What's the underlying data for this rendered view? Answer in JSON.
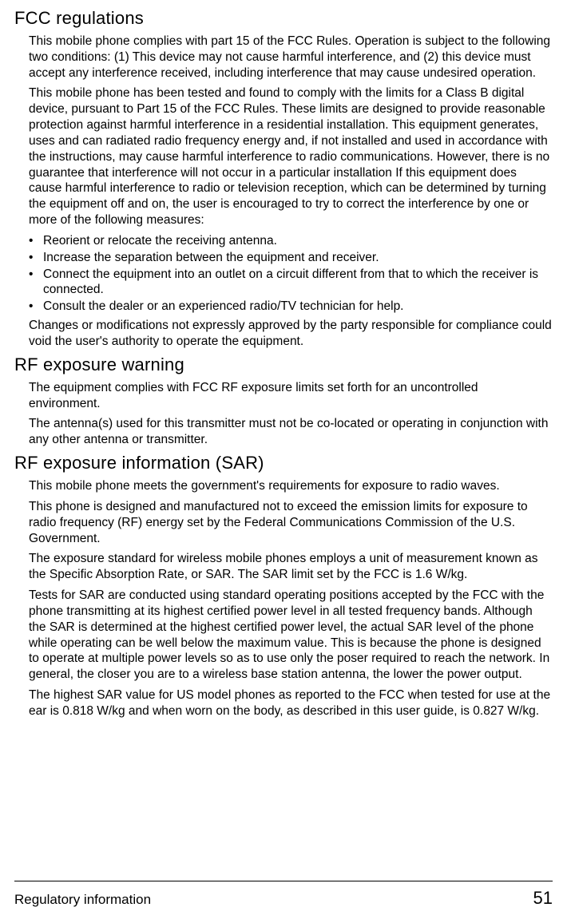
{
  "sections": [
    {
      "heading": "FCC regulations",
      "paragraphs": [
        "This mobile phone complies with part 15 of the FCC Rules. Operation is subject to the following two conditions: (1) This device may not cause harmful interference, and (2) this device must accept any interference received, including interference that may cause undesired operation.",
        "This mobile phone has been tested and found to comply with the limits for a Class B digital device, pursuant to Part 15 of the FCC Rules. These limits are designed to provide reasonable protection against harmful interference in a residential installation. This equipment generates, uses and can radiated radio frequency energy and, if not installed and used in accordance with the instructions, may cause harmful interference to radio communications. However, there is no guarantee that interference will not occur in a particular installation If this equipment does cause harmful interference to radio or television reception, which can be determined by turning the equipment off and on, the user is encouraged to try to correct the interference by one or more of the following measures:"
      ],
      "bullets": [
        "Reorient or relocate the receiving antenna.",
        "Increase the separation between the equipment and receiver.",
        "Connect the equipment into an outlet on a circuit different from that to which the receiver is connected.",
        "Consult the dealer or an experienced radio/TV technician for help."
      ],
      "after_bullets": [
        "Changes or modifications not expressly approved by the party responsible for compliance could void the user's authority to operate the equipment."
      ]
    },
    {
      "heading": "RF exposure warning",
      "paragraphs": [
        "The equipment complies with FCC RF exposure limits set forth for an uncontrolled environment.",
        "The antenna(s) used for this transmitter must not be co-located or operating in conjunction with any other antenna or transmitter."
      ]
    },
    {
      "heading": "RF exposure information (SAR)",
      "paragraphs": [
        "This mobile phone meets the government's requirements for exposure to radio waves.",
        "This phone is designed and manufactured not to exceed the emission limits for exposure to radio frequency (RF) energy set by the Federal Communications Commission of the U.S. Government.",
        "The exposure standard for wireless mobile phones employs a unit of measurement known as the Specific Absorption Rate, or SAR. The SAR limit set by the FCC is 1.6 W/kg.",
        "Tests for SAR are conducted using standard operating positions accepted by the FCC with the phone transmitting at its highest certified power level in all tested frequency bands. Although the SAR is determined at the highest certified power level, the actual SAR level of the phone while operating can be well below the maximum value. This is because the phone is designed to operate at multiple power levels so as to use only the poser required to reach the network. In general, the closer you are to a wireless base station antenna, the lower the power output.",
        "The highest SAR value for US  model phones as reported to the FCC when tested for use at the ear is 0.818 W/kg and when worn on the body, as described in this user guide, is 0.827 W/kg."
      ]
    }
  ],
  "footer": {
    "section_title": "Regulatory information",
    "page_number": "51"
  }
}
